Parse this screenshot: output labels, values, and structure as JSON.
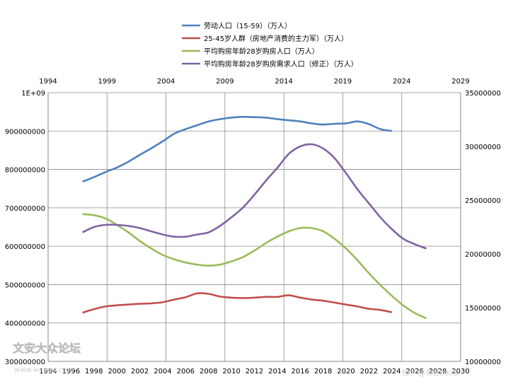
{
  "chart_data": {
    "type": "line",
    "legend_placement": "top",
    "grid": true,
    "primary_x": {
      "range": [
        1994,
        2030
      ],
      "ticks": [
        1994,
        1996,
        1998,
        2000,
        2002,
        2004,
        2006,
        2008,
        2010,
        2012,
        2014,
        2016,
        2018,
        2020,
        2022,
        2024,
        2026,
        2028,
        2030
      ]
    },
    "secondary_x": {
      "range": [
        1994,
        2029
      ],
      "ticks": [
        1994,
        1999,
        2004,
        2009,
        2014,
        2019,
        2024,
        2029
      ]
    },
    "primary_y": {
      "range": [
        300000000,
        1000000000
      ],
      "ticks": [
        300000000,
        400000000,
        500000000,
        600000000,
        700000000,
        800000000,
        900000000,
        1000000000
      ],
      "tick_labels": [
        "300000000",
        "400000000",
        "500000000",
        "600000000",
        "700000000",
        "800000000",
        "900000000",
        "1E+09"
      ]
    },
    "secondary_y": {
      "range": [
        10000000,
        35000000
      ],
      "ticks": [
        10000000,
        15000000,
        20000000,
        25000000,
        30000000,
        35000000
      ],
      "tick_labels": [
        "10000000",
        "15000000",
        "20000000",
        "25000000",
        "30000000",
        "35000000"
      ]
    },
    "series": [
      {
        "name": "劳动人口（15-59）（万人）",
        "color": "#4f81bd",
        "axis": "primary",
        "x": [
          1997,
          1998,
          1999,
          2000,
          2001,
          2002,
          2003,
          2004,
          2005,
          2006,
          2007,
          2008,
          2009,
          2010,
          2011,
          2012,
          2013,
          2014,
          2015,
          2016,
          2017,
          2018,
          2019,
          2020,
          2021,
          2022,
          2023,
          2024
        ],
        "values": [
          768000000,
          780000000,
          793000000,
          805000000,
          820000000,
          838000000,
          855000000,
          873000000,
          893000000,
          905000000,
          915000000,
          925000000,
          931000000,
          935000000,
          937000000,
          936000000,
          935000000,
          931000000,
          928000000,
          925000000,
          920000000,
          917000000,
          919000000,
          920000000,
          925000000,
          918000000,
          905000000,
          900000000
        ]
      },
      {
        "name": "25-45岁人群（房地产消费的主力军）（万人）",
        "color": "#c0504d",
        "axis": "primary",
        "x": [
          1997,
          1998,
          1999,
          2000,
          2001,
          2002,
          2003,
          2004,
          2005,
          2006,
          2007,
          2008,
          2009,
          2010,
          2011,
          2012,
          2013,
          2014,
          2015,
          2016,
          2017,
          2018,
          2019,
          2020,
          2021,
          2022,
          2023,
          2024
        ],
        "values": [
          427000000,
          436000000,
          443000000,
          446000000,
          448000000,
          450000000,
          451000000,
          454000000,
          461000000,
          467000000,
          477000000,
          476000000,
          469000000,
          466000000,
          465000000,
          466000000,
          468000000,
          468000000,
          472000000,
          466000000,
          461000000,
          458000000,
          453000000,
          448000000,
          443000000,
          437000000,
          434000000,
          428000000
        ]
      },
      {
        "name": "平均购房年龄28岁购房人口（万人）",
        "color": "#9bbb59",
        "axis": "secondary",
        "x": [
          1997,
          1998,
          1999,
          2000,
          2001,
          2002,
          2003,
          2004,
          2005,
          2006,
          2007,
          2008,
          2009,
          2010,
          2011,
          2012,
          2013,
          2014,
          2015,
          2016,
          2017,
          2018,
          2019,
          2020,
          2021,
          2022,
          2023,
          2024,
          2025,
          2026,
          2027
        ],
        "values": [
          23700000,
          23600000,
          23300000,
          22700000,
          22000000,
          21200000,
          20500000,
          19900000,
          19500000,
          19200000,
          19000000,
          18900000,
          19000000,
          19300000,
          19700000,
          20300000,
          21000000,
          21600000,
          22100000,
          22400000,
          22400000,
          22100000,
          21400000,
          20500000,
          19400000,
          18200000,
          17100000,
          16100000,
          15200000,
          14500000,
          14000000
        ]
      },
      {
        "name": "平均购房年龄28岁购房需求人口（修正）（万人）",
        "color": "#8064a2",
        "axis": "secondary",
        "x": [
          1997,
          1998,
          1999,
          2000,
          2001,
          2002,
          2003,
          2004,
          2005,
          2006,
          2007,
          2008,
          2009,
          2010,
          2011,
          2012,
          2013,
          2014,
          2015,
          2016,
          2017,
          2018,
          2019,
          2020,
          2021,
          2022,
          2023,
          2024,
          2025,
          2026,
          2027
        ],
        "values": [
          22000000,
          22500000,
          22700000,
          22700000,
          22600000,
          22400000,
          22100000,
          21800000,
          21600000,
          21600000,
          21800000,
          22000000,
          22600000,
          23400000,
          24300000,
          25500000,
          26800000,
          28000000,
          29300000,
          30000000,
          30200000,
          29800000,
          28900000,
          27500000,
          26000000,
          24700000,
          23400000,
          22300000,
          21400000,
          20900000,
          20500000
        ]
      }
    ]
  },
  "watermark": {
    "site_name": "文安大众论坛",
    "site_url": "www.wenan.com",
    "author": "知乎 @青石2005"
  }
}
